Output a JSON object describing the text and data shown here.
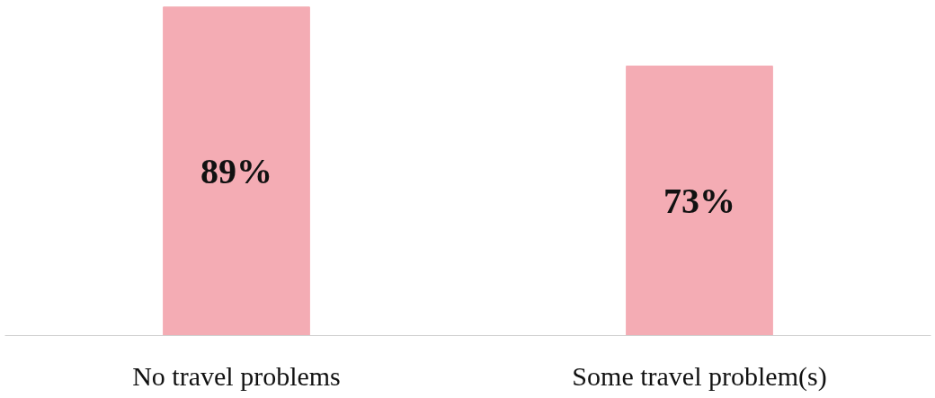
{
  "chart_data": {
    "type": "bar",
    "categories": [
      "No travel problems",
      "Some travel problem(s)"
    ],
    "values": [
      89,
      73
    ],
    "color": "#f4acb4",
    "data_labels": true,
    "value_labels": [
      "89%",
      "73%"
    ],
    "tick_labels": "x",
    "grid": false
  }
}
